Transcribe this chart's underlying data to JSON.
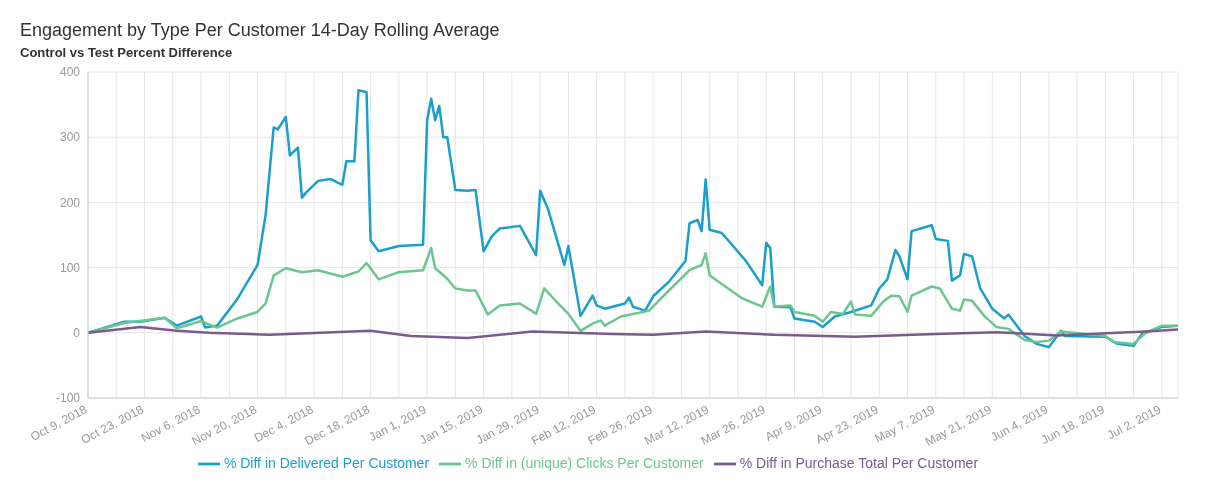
{
  "chart_data": {
    "type": "line",
    "title": "Engagement by Type Per Customer 14-Day Rolling Average",
    "subtitle": "Control vs Test Percent Difference",
    "xlim": [
      "2018-10-09",
      "2019-07-06"
    ],
    "ylim": [
      -100,
      400
    ],
    "yticks": [
      -100,
      0,
      100,
      200,
      300,
      400
    ],
    "xticks": [
      {
        "value": "2018-10-09",
        "label": "Oct 9, 2018"
      },
      {
        "value": "2018-10-16",
        "label": null
      },
      {
        "value": "2018-10-23",
        "label": "Oct 23, 2018"
      },
      {
        "value": "2018-10-30",
        "label": null
      },
      {
        "value": "2018-11-06",
        "label": "Nov 6, 2018"
      },
      {
        "value": "2018-11-13",
        "label": null
      },
      {
        "value": "2018-11-20",
        "label": "Nov 20, 2018"
      },
      {
        "value": "2018-11-27",
        "label": null
      },
      {
        "value": "2018-12-04",
        "label": "Dec 4, 2018"
      },
      {
        "value": "2018-12-11",
        "label": null
      },
      {
        "value": "2018-12-18",
        "label": "Dec 18, 2018"
      },
      {
        "value": "2018-12-25",
        "label": null
      },
      {
        "value": "2019-01-01",
        "label": "Jan 1, 2019"
      },
      {
        "value": "2019-01-08",
        "label": null
      },
      {
        "value": "2019-01-15",
        "label": "Jan 15, 2019"
      },
      {
        "value": "2019-01-22",
        "label": null
      },
      {
        "value": "2019-01-29",
        "label": "Jan 29, 2019"
      },
      {
        "value": "2019-02-05",
        "label": null
      },
      {
        "value": "2019-02-12",
        "label": "Feb 12, 2019"
      },
      {
        "value": "2019-02-19",
        "label": null
      },
      {
        "value": "2019-02-26",
        "label": "Feb 26, 2019"
      },
      {
        "value": "2019-03-05",
        "label": null
      },
      {
        "value": "2019-03-12",
        "label": "Mar 12, 2019"
      },
      {
        "value": "2019-03-19",
        "label": null
      },
      {
        "value": "2019-03-26",
        "label": "Mar 26, 2019"
      },
      {
        "value": "2019-04-02",
        "label": null
      },
      {
        "value": "2019-04-09",
        "label": "Apr 9, 2019"
      },
      {
        "value": "2019-04-16",
        "label": null
      },
      {
        "value": "2019-04-23",
        "label": "Apr 23, 2019"
      },
      {
        "value": "2019-04-30",
        "label": null
      },
      {
        "value": "2019-05-07",
        "label": "May 7, 2019"
      },
      {
        "value": "2019-05-14",
        "label": null
      },
      {
        "value": "2019-05-21",
        "label": "May 21, 2019"
      },
      {
        "value": "2019-05-28",
        "label": null
      },
      {
        "value": "2019-06-04",
        "label": "Jun 4, 2019"
      },
      {
        "value": "2019-06-11",
        "label": null
      },
      {
        "value": "2019-06-18",
        "label": "Jun 18, 2019"
      },
      {
        "value": "2019-06-25",
        "label": null
      },
      {
        "value": "2019-07-02",
        "label": "Jul 2, 2019"
      }
    ],
    "grid": true,
    "legend": "bottom",
    "marker": "none",
    "line_style": "solid",
    "series": [
      {
        "name": "% Diff in Delivered Per Customer",
        "color": "#1a9fcb",
        "x": [
          "2018-10-09",
          "2018-10-18",
          "2018-10-22",
          "2018-10-28",
          "2018-10-31",
          "2018-11-06",
          "2018-11-07",
          "2018-11-10",
          "2018-11-15",
          "2018-11-20",
          "2018-11-22",
          "2018-11-24",
          "2018-11-25",
          "2018-11-27",
          "2018-11-28",
          "2018-11-30",
          "2018-12-01",
          "2018-12-02",
          "2018-12-05",
          "2018-12-08",
          "2018-12-11",
          "2018-12-12",
          "2018-12-14",
          "2018-12-15",
          "2018-12-17",
          "2018-12-18",
          "2018-12-20",
          "2018-12-25",
          "2018-12-31",
          "2019-01-01",
          "2019-01-02",
          "2019-01-03",
          "2019-01-04",
          "2019-01-05",
          "2019-01-06",
          "2019-01-08",
          "2019-01-11",
          "2019-01-13",
          "2019-01-15",
          "2019-01-17",
          "2019-01-19",
          "2019-01-24",
          "2019-01-28",
          "2019-01-29",
          "2019-01-31",
          "2019-02-04",
          "2019-02-05",
          "2019-02-08",
          "2019-02-11",
          "2019-02-12",
          "2019-02-14",
          "2019-02-19",
          "2019-02-20",
          "2019-02-21",
          "2019-02-24",
          "2019-02-26",
          "2019-03-02",
          "2019-03-06",
          "2019-03-07",
          "2019-03-09",
          "2019-03-10",
          "2019-03-11",
          "2019-03-12",
          "2019-03-15",
          "2019-03-21",
          "2019-03-25",
          "2019-03-26",
          "2019-03-27",
          "2019-03-28",
          "2019-04-01",
          "2019-04-02",
          "2019-04-07",
          "2019-04-09",
          "2019-04-12",
          "2019-04-16",
          "2019-04-21",
          "2019-04-23",
          "2019-04-25",
          "2019-04-27",
          "2019-04-28",
          "2019-04-30",
          "2019-05-01",
          "2019-05-06",
          "2019-05-07",
          "2019-05-10",
          "2019-05-11",
          "2019-05-13",
          "2019-05-14",
          "2019-05-16",
          "2019-05-18",
          "2019-05-21",
          "2019-05-24",
          "2019-05-25",
          "2019-05-29",
          "2019-06-01",
          "2019-06-04",
          "2019-06-07",
          "2019-06-08",
          "2019-06-18",
          "2019-06-21",
          "2019-06-25",
          "2019-06-27",
          "2019-07-02",
          "2019-07-06"
        ],
        "values": [
          0,
          17,
          17,
          23,
          11,
          25,
          8,
          11,
          52,
          104,
          181,
          315,
          312,
          331,
          272,
          284,
          207,
          215,
          233,
          236,
          227,
          263,
          263,
          372,
          369,
          142,
          125,
          133,
          135,
          326,
          359,
          326,
          348,
          300,
          300,
          219,
          218,
          219,
          125,
          148,
          160,
          164,
          119,
          218,
          189,
          104,
          133,
          26,
          57,
          42,
          37,
          45,
          54,
          40,
          34,
          56,
          79,
          110,
          168,
          173,
          156,
          235,
          158,
          153,
          110,
          73,
          138,
          130,
          40,
          39,
          22,
          17,
          9,
          25,
          32,
          42,
          68,
          82,
          127,
          117,
          82,
          156,
          165,
          144,
          141,
          80,
          88,
          121,
          117,
          68,
          37,
          22,
          28,
          -5,
          -17,
          -22,
          3,
          -5,
          -6,
          -17,
          -20,
          -2,
          9,
          11
        ]
      },
      {
        "name": "% Diff in (unique) Clicks Per Customer",
        "color": "#6cc68f",
        "x": [
          "2018-10-09",
          "2018-10-18",
          "2018-10-28",
          "2018-10-31",
          "2018-11-06",
          "2018-11-10",
          "2018-11-15",
          "2018-11-20",
          "2018-11-22",
          "2018-11-24",
          "2018-11-27",
          "2018-12-01",
          "2018-12-05",
          "2018-12-11",
          "2018-12-15",
          "2018-12-17",
          "2018-12-20",
          "2018-12-25",
          "2018-12-31",
          "2019-01-02",
          "2019-01-03",
          "2019-01-06",
          "2019-01-08",
          "2019-01-11",
          "2019-01-13",
          "2019-01-16",
          "2019-01-19",
          "2019-01-24",
          "2019-01-28",
          "2019-01-30",
          "2019-02-02",
          "2019-02-05",
          "2019-02-08",
          "2019-02-11",
          "2019-02-13",
          "2019-02-14",
          "2019-02-18",
          "2019-02-25",
          "2019-02-28",
          "2019-03-07",
          "2019-03-10",
          "2019-03-11",
          "2019-03-12",
          "2019-03-20",
          "2019-03-25",
          "2019-03-27",
          "2019-03-28",
          "2019-04-01",
          "2019-04-02",
          "2019-04-07",
          "2019-04-09",
          "2019-04-11",
          "2019-04-14",
          "2019-04-16",
          "2019-04-17",
          "2019-04-21",
          "2019-04-24",
          "2019-04-26",
          "2019-04-28",
          "2019-04-30",
          "2019-05-01",
          "2019-05-06",
          "2019-05-08",
          "2019-05-11",
          "2019-05-13",
          "2019-05-14",
          "2019-05-16",
          "2019-05-19",
          "2019-05-22",
          "2019-05-25",
          "2019-05-29",
          "2019-06-01",
          "2019-06-04",
          "2019-06-07",
          "2019-06-18",
          "2019-06-20",
          "2019-06-25",
          "2019-06-28",
          "2019-07-02",
          "2019-07-06"
        ],
        "values": [
          0,
          15,
          23,
          7,
          18,
          8,
          22,
          32,
          45,
          88,
          99,
          93,
          96,
          86,
          94,
          107,
          82,
          93,
          96,
          130,
          99,
          83,
          68,
          65,
          65,
          28,
          42,
          45,
          29,
          68,
          48,
          29,
          3,
          14,
          19,
          11,
          25,
          34,
          53,
          96,
          104,
          122,
          88,
          53,
          40,
          71,
          40,
          42,
          32,
          26,
          17,
          32,
          29,
          48,
          28,
          26,
          48,
          57,
          56,
          32,
          57,
          71,
          68,
          37,
          34,
          51,
          49,
          26,
          9,
          6,
          -11,
          -14,
          -12,
          2,
          -5,
          -14,
          -17,
          0,
          11,
          11
        ]
      },
      {
        "name": "% Diff in Purchase Total Per Customer",
        "color": "#7b5a8c",
        "x": [
          "2018-10-09",
          "2018-10-22",
          "2018-10-31",
          "2018-11-08",
          "2018-11-23",
          "2018-12-18",
          "2018-12-28",
          "2019-01-11",
          "2019-01-27",
          "2019-02-16",
          "2019-02-26",
          "2019-03-11",
          "2019-03-28",
          "2019-04-17",
          "2019-05-07",
          "2019-05-22",
          "2019-06-06",
          "2019-06-21",
          "2019-06-28",
          "2019-07-06"
        ],
        "values": [
          0,
          9,
          3,
          0,
          -3,
          3,
          -5,
          -8,
          2,
          -2,
          -3,
          2,
          -3,
          -6,
          -2,
          1,
          -4,
          0,
          2,
          5
        ]
      }
    ]
  }
}
